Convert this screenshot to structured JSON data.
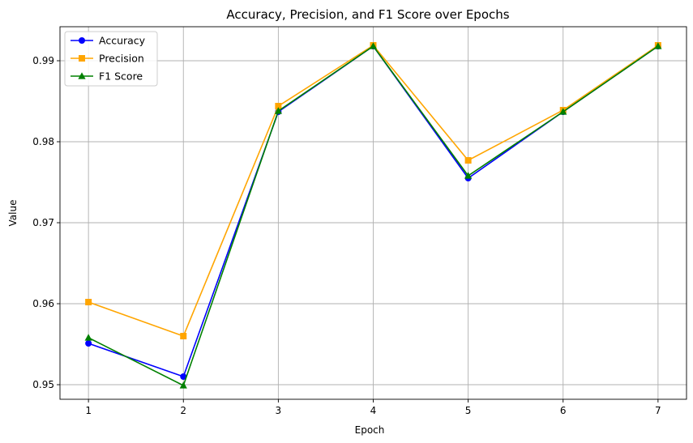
{
  "chart_data": {
    "type": "line",
    "title": "Accuracy, Precision, and F1 Score over Epochs",
    "xlabel": "Epoch",
    "ylabel": "Value",
    "x": [
      1,
      2,
      3,
      4,
      5,
      6,
      7
    ],
    "xlim": [
      0.7,
      7.3
    ],
    "ylim": [
      0.9482,
      0.9942
    ],
    "xticks": [
      1,
      2,
      3,
      4,
      5,
      6,
      7
    ],
    "yticks": [
      0.95,
      0.96,
      0.97,
      0.98,
      0.99
    ],
    "ytick_labels": [
      "0.95",
      "0.96",
      "0.97",
      "0.98",
      "0.99"
    ],
    "grid": true,
    "legend_position": "top-left",
    "series": [
      {
        "name": "Accuracy",
        "color": "#0000ff",
        "marker": "circle",
        "values": [
          0.9551,
          0.951,
          0.9837,
          0.9918,
          0.9755,
          0.9837,
          0.9918
        ]
      },
      {
        "name": "Precision",
        "color": "#ffa500",
        "marker": "square",
        "values": [
          0.9602,
          0.956,
          0.9844,
          0.9919,
          0.9777,
          0.9839,
          0.9919
        ]
      },
      {
        "name": "F1 Score",
        "color": "#008000",
        "marker": "triangle",
        "values": [
          0.9558,
          0.9499,
          0.9838,
          0.9918,
          0.9758,
          0.9837,
          0.9918
        ]
      }
    ]
  }
}
